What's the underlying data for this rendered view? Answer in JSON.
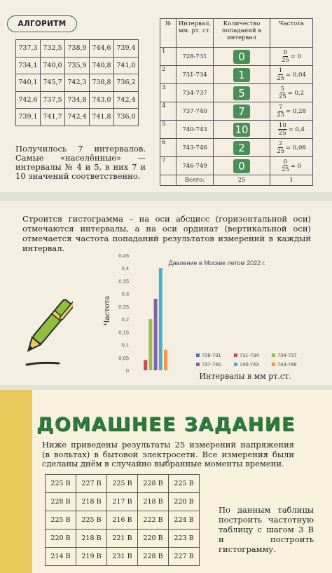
{
  "algorithm": {
    "badge": "АЛГОРИТМ",
    "measurements": [
      [
        "737,3",
        "732,5",
        "738,9",
        "744,6",
        "739,4"
      ],
      [
        "734,1",
        "740,0",
        "735,9",
        "740,8",
        "741,0"
      ],
      [
        "740,1",
        "745,7",
        "742,3",
        "738,8",
        "736,2"
      ],
      [
        "742,6",
        "737,5",
        "734,8",
        "743,0",
        "742,4"
      ],
      [
        "739,1",
        "741,7",
        "742,4",
        "741,8",
        "736,0"
      ]
    ],
    "note": "Получилось 7 интервалов. Самые «населённые» — интервалы № 4 и 5, в них 7 и 10 значений соответственно."
  },
  "freq_table": {
    "headers": [
      "№",
      "Интервал, мм. рт. ст.",
      "Количество попаданий в интервал",
      "Частота"
    ],
    "rows": [
      {
        "n": "1",
        "interval": "728-731",
        "count": "0",
        "num": "0",
        "den": "25",
        "res": "= 0"
      },
      {
        "n": "2",
        "interval": "731-734",
        "count": "1",
        "num": "1",
        "den": "25",
        "res": "= 0,04"
      },
      {
        "n": "3",
        "interval": "734-737",
        "count": "5",
        "num": "5",
        "den": "25",
        "res": "= 0,2"
      },
      {
        "n": "4",
        "interval": "737-740",
        "count": "7",
        "num": "7",
        "den": "25",
        "res": "= 0,28"
      },
      {
        "n": "5",
        "interval": "740-743",
        "count": "10",
        "num": "10",
        "den": "25",
        "res": "= 0,4"
      },
      {
        "n": "6",
        "interval": "743-746",
        "count": "2",
        "num": "2",
        "den": "25",
        "res": "= 0,08"
      },
      {
        "n": "7",
        "interval": "746-749",
        "count": "0",
        "num": "0",
        "den": "25",
        "res": "= 0"
      }
    ],
    "total": {
      "label": "Всего:",
      "count": "25",
      "freq": "1"
    }
  },
  "histogram_intro": "Строится гистограмма – на оси абсцисс (горизонтальной оси) отмечаются интервалы, а на оси ординат (вертикальной оси) отмечается частота попаданий результатов измерений в каждый интервал.",
  "chart_data": {
    "type": "bar",
    "title": "Давление в Москве летом 2022 г.",
    "xlabel": "Интервалы в мм рт.ст.",
    "ylabel": "Частота",
    "ylim": [
      0,
      0.45
    ],
    "yticks": [
      "0",
      "0,05",
      "0,1",
      "0,15",
      "0,2",
      "0,25",
      "0,3",
      "0,35",
      "0,4",
      "0,45"
    ],
    "legend_position": "bottom-right",
    "series": [
      {
        "name": "728-731",
        "value": 0,
        "color": "#4472c4"
      },
      {
        "name": "731-734",
        "value": 0.04,
        "color": "#c0504d"
      },
      {
        "name": "734-737",
        "value": 0.2,
        "color": "#9bbb59"
      },
      {
        "name": "737-740",
        "value": 0.28,
        "color": "#8064a2"
      },
      {
        "name": "740-743",
        "value": 0.4,
        "color": "#4bacc6"
      },
      {
        "name": "743-746",
        "value": 0.08,
        "color": "#f79646"
      }
    ]
  },
  "homework": {
    "title": "ДОМАШНЕЕ ЗАДАНИЕ",
    "text": "Ниже приведены результаты 25 измерений напряжения (в вольтах) в бытовой электросети. Все измерения были сделаны днём в случайно выбранные моменты времени.",
    "grid": [
      [
        "225 В",
        "227 В",
        "225 В",
        "228 В",
        "225 В"
      ],
      [
        "228 В",
        "218 В",
        "217 В",
        "218 В",
        "220 В"
      ],
      [
        "225 В",
        "225 В",
        "216 В",
        "222 В",
        "224 В"
      ],
      [
        "220 В",
        "218 В",
        "221 В",
        "220 В",
        "223 В"
      ],
      [
        "214 В",
        "219 В",
        "231 В",
        "228 В",
        "227 В"
      ]
    ],
    "task": "По данным таблицы построить частотную таблицу с шагом 3 В и построить гистограмму."
  },
  "colors": {
    "accent_green": "#2f7a3c",
    "count_box": "#4a8f58",
    "yellow_frame": "#e8c95a"
  }
}
